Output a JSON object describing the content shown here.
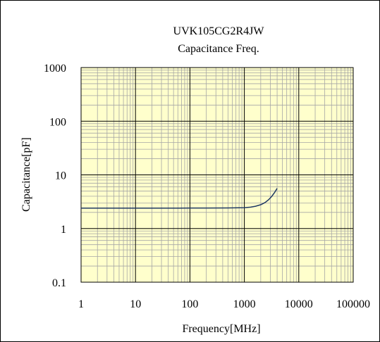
{
  "chart_data": {
    "type": "line",
    "title": "UVK105CG2R4JW",
    "subtitle": "Capacitance Freq.",
    "xlabel": "Frequency[MHz]",
    "ylabel": "Capacitance[pF]",
    "x_scale": "log",
    "y_scale": "log",
    "xlim": [
      1,
      100000
    ],
    "ylim": [
      0.1,
      1000
    ],
    "x_ticks": [
      "1",
      "10",
      "100",
      "1000",
      "10000",
      "100000"
    ],
    "y_ticks": [
      "0.1",
      "1",
      "10",
      "100",
      "1000"
    ],
    "grid": true,
    "legend": "none",
    "colors": {
      "plot_bg": "#ffffcc",
      "major_grid": "#000000",
      "minor_grid": "#a6a6a6",
      "line": "#1f3864"
    },
    "series": [
      {
        "x": [
          1,
          2,
          5,
          10,
          20,
          50,
          100,
          200,
          500,
          1000,
          1300,
          1600,
          2000,
          2400,
          2800,
          3200,
          3600,
          4000
        ],
        "y": [
          2.4,
          2.4,
          2.4,
          2.4,
          2.4,
          2.4,
          2.41,
          2.41,
          2.42,
          2.45,
          2.5,
          2.6,
          2.78,
          3.05,
          3.45,
          4.0,
          4.7,
          5.6
        ]
      }
    ]
  }
}
